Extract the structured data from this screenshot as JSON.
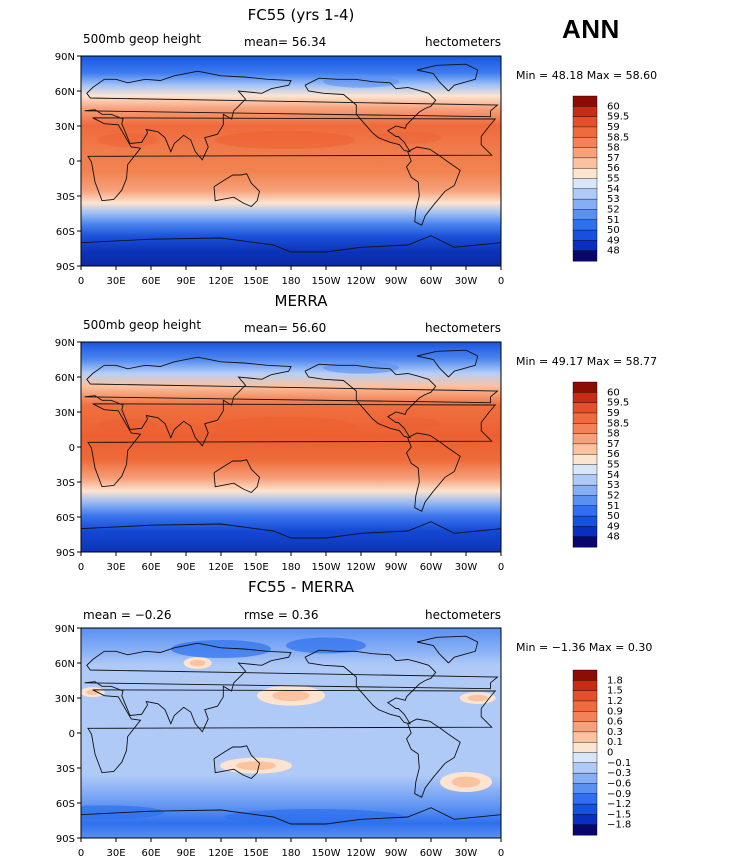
{
  "header": {
    "season": "ANN"
  },
  "axis_ticks": {
    "x": [
      "0",
      "30E",
      "60E",
      "90E",
      "120E",
      "150E",
      "180",
      "150W",
      "120W",
      "90W",
      "60W",
      "30W",
      "0"
    ],
    "y": [
      "90N",
      "60N",
      "30N",
      "0",
      "30S",
      "60S",
      "90S"
    ]
  },
  "colors": {
    "abs_scale": [
      "#08086b",
      "#0a2fc0",
      "#1550e0",
      "#2e70ee",
      "#5a90f2",
      "#85aef5",
      "#b0caf7",
      "#d8e6fa",
      "#fde4d0",
      "#fbc2a0",
      "#f8a07a",
      "#f48258",
      "#ef6a3c",
      "#e4502a",
      "#c82c14",
      "#8e0c06"
    ],
    "diff_scale": [
      "#08086b",
      "#0a2fc0",
      "#1550e0",
      "#2e70ee",
      "#5a90f2",
      "#85aef5",
      "#b0caf7",
      "#d8e6fa",
      "#fde4d0",
      "#fbc2a0",
      "#f8a07a",
      "#f48258",
      "#ef6a3c",
      "#e4502a",
      "#c82c14",
      "#8e0c06"
    ]
  },
  "chart_data": [
    {
      "type": "heatmap",
      "title": "FC55 (yrs 1-4)",
      "left_label": "500mb geop height",
      "mean_label": "mean=",
      "mean_value": "56.34",
      "units": "hectometers",
      "min_label": "Min =",
      "min_value": "48.18",
      "max_label": "Max =",
      "max_value": "58.60",
      "colorbar_levels": [
        "60",
        "59.5",
        "59",
        "58.5",
        "58",
        "57",
        "56",
        "55",
        "54",
        "53",
        "52",
        "51",
        "50",
        "49",
        "48"
      ],
      "field": "absolute",
      "x_range": [
        0,
        360
      ],
      "y_range": [
        -90,
        90
      ]
    },
    {
      "type": "heatmap",
      "title": "MERRA",
      "left_label": "500mb geop height",
      "mean_label": "mean=",
      "mean_value": "56.60",
      "units": "hectometers",
      "min_label": "Min =",
      "min_value": "49.17",
      "max_label": "Max =",
      "max_value": "58.77",
      "colorbar_levels": [
        "60",
        "59.5",
        "59",
        "58.5",
        "58",
        "57",
        "56",
        "55",
        "54",
        "53",
        "52",
        "51",
        "50",
        "49",
        "48"
      ],
      "field": "absolute",
      "x_range": [
        0,
        360
      ],
      "y_range": [
        -90,
        90
      ]
    },
    {
      "type": "heatmap",
      "title": "FC55 - MERRA",
      "left_label": "mean =",
      "left_value": "−0.26",
      "mean_label": "rmse =",
      "mean_value": "0.36",
      "units": "hectometers",
      "min_label": "Min =",
      "min_value": "−1.36",
      "max_label": "Max =",
      "max_value": "0.30",
      "colorbar_levels": [
        "1.8",
        "1.5",
        "1.2",
        "0.9",
        "0.6",
        "0.3",
        "0.1",
        "0",
        "−0.1",
        "−0.3",
        "−0.6",
        "−0.9",
        "−1.2",
        "−1.5",
        "−1.8"
      ],
      "field": "difference",
      "x_range": [
        0,
        360
      ],
      "y_range": [
        -90,
        90
      ]
    }
  ]
}
